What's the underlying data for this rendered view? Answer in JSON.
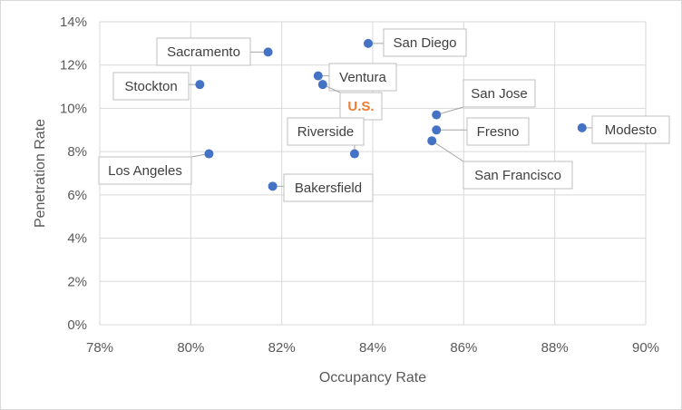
{
  "chart_data": {
    "type": "scatter",
    "title": "",
    "xlabel": "Occupancy Rate",
    "ylabel": "Penetration Rate",
    "xlim": [
      78,
      90
    ],
    "ylim": [
      0,
      14
    ],
    "x_ticks": [
      78,
      80,
      82,
      84,
      86,
      88,
      90
    ],
    "y_ticks": [
      0,
      2,
      4,
      6,
      8,
      10,
      12,
      14
    ],
    "x_tick_labels": [
      "78%",
      "80%",
      "82%",
      "84%",
      "86%",
      "88%",
      "90%"
    ],
    "y_tick_labels": [
      "0%",
      "2%",
      "4%",
      "6%",
      "8%",
      "10%",
      "12%",
      "14%"
    ],
    "grid": true,
    "legend": "none",
    "marker_color": "#4472c4",
    "highlight_color": "#ed7d31",
    "points": [
      {
        "label": "Sacramento",
        "x": 81.7,
        "y": 12.6
      },
      {
        "label": "San Diego",
        "x": 83.9,
        "y": 13.0
      },
      {
        "label": "Stockton",
        "x": 80.2,
        "y": 11.1
      },
      {
        "label": "Ventura",
        "x": 82.8,
        "y": 11.5
      },
      {
        "label": "U.S.",
        "x": 82.9,
        "y": 11.1,
        "highlight": true
      },
      {
        "label": "San Jose",
        "x": 85.4,
        "y": 9.7
      },
      {
        "label": "Riverside",
        "x": 83.6,
        "y": 7.9
      },
      {
        "label": "Fresno",
        "x": 85.4,
        "y": 9.0
      },
      {
        "label": "Modesto",
        "x": 88.6,
        "y": 9.1
      },
      {
        "label": "San Francisco",
        "x": 85.3,
        "y": 8.5
      },
      {
        "label": "Los Angeles",
        "x": 80.4,
        "y": 7.9
      },
      {
        "label": "Bakersfield",
        "x": 81.8,
        "y": 6.4
      }
    ]
  }
}
